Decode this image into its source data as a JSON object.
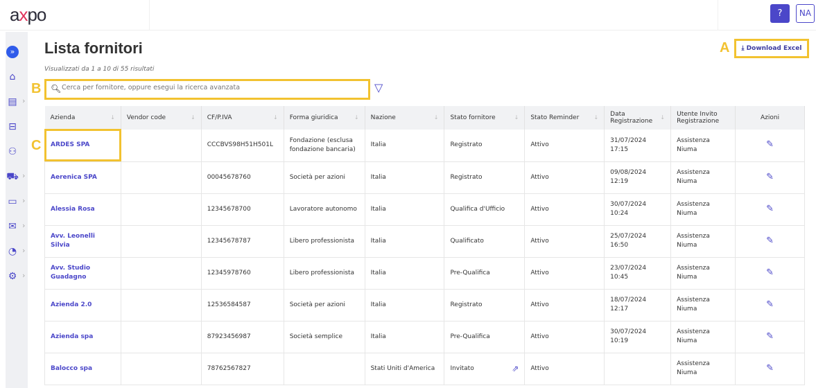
{
  "header": {
    "logo": "axpo",
    "help_label": "?",
    "avatar_initials": "NA"
  },
  "sidebar": {
    "items": [
      {
        "icon": "expand-icon"
      },
      {
        "icon": "home-icon"
      },
      {
        "icon": "id-card-icon"
      },
      {
        "icon": "briefcase-icon"
      },
      {
        "icon": "users-icon"
      },
      {
        "icon": "truck-icon"
      },
      {
        "icon": "folder-icon"
      },
      {
        "icon": "mail-icon"
      },
      {
        "icon": "chart-pie-icon"
      },
      {
        "icon": "gear-icon"
      }
    ]
  },
  "page": {
    "title": "Lista fornitori",
    "subtitle": "Visualizzati da 1 a 10 di 55 risultati",
    "download_label": "Download Excel",
    "search_placeholder": "Cerca per fornitore, oppure esegui la ricerca avanzata"
  },
  "annotations": {
    "a": "A",
    "b": "B",
    "c": "C"
  },
  "accent": "#4b47c9",
  "highlight": "#f2c230",
  "table": {
    "columns": [
      "Azienda",
      "Vendor code",
      "CF/P.IVA",
      "Forma giuridica",
      "Nazione",
      "Stato fornitore",
      "Stato Reminder",
      "Data Registrazione",
      "Utente Invito Registrazione",
      "Azioni"
    ],
    "rows": [
      {
        "azienda": "ARDES SPA",
        "vendor": "",
        "cf": "CCCBVS98H51H501L",
        "forma": "Fondazione (esclusa fondazione bancaria)",
        "nazione": "Italia",
        "stato": "Registrato",
        "reminder": "Attivo",
        "data": "31/07/2024 17:15",
        "utente": "Assistenza Niuma"
      },
      {
        "azienda": "Aerenica SPA",
        "vendor": "",
        "cf": "00045678760",
        "forma": "Società per azioni",
        "nazione": "Italia",
        "stato": "Registrato",
        "reminder": "Attivo",
        "data": "09/08/2024 12:19",
        "utente": "Assistenza Niuma"
      },
      {
        "azienda": "Alessia Rosa",
        "vendor": "",
        "cf": "12345678700",
        "forma": "Lavoratore autonomo",
        "nazione": "Italia",
        "stato": "Qualifica d'Ufficio",
        "reminder": "Attivo",
        "data": "30/07/2024 10:24",
        "utente": "Assistenza Niuma"
      },
      {
        "azienda": "Avv. Leonelli Silvia",
        "vendor": "",
        "cf": "12345678787",
        "forma": "Libero professionista",
        "nazione": "Italia",
        "stato": "Qualificato",
        "reminder": "Attivo",
        "data": "25/07/2024 16:50",
        "utente": "Assistenza Niuma"
      },
      {
        "azienda": "Avv. Studio Guadagno",
        "vendor": "",
        "cf": "12345978760",
        "forma": "Libero professionista",
        "nazione": "Italia",
        "stato": "Pre-Qualifica",
        "reminder": "Attivo",
        "data": "23/07/2024 10:45",
        "utente": "Assistenza Niuma"
      },
      {
        "azienda": "Azienda 2.0",
        "vendor": "",
        "cf": "12536584587",
        "forma": "Società per azioni",
        "nazione": "Italia",
        "stato": "Registrato",
        "reminder": "Attivo",
        "data": "18/07/2024 12:17",
        "utente": "Assistenza Niuma"
      },
      {
        "azienda": "Azienda spa",
        "vendor": "",
        "cf": "87923456987",
        "forma": "Società semplice",
        "nazione": "Italia",
        "stato": "Pre-Qualifica",
        "reminder": "Attivo",
        "data": "30/07/2024 10:19",
        "utente": "Assistenza Niuma"
      },
      {
        "azienda": "Balocco spa",
        "vendor": "",
        "cf": "78762567827",
        "forma": "",
        "nazione": "Stati Uniti d'America",
        "stato": "Invitato",
        "reminder": "Attivo",
        "data": "",
        "utente": "Assistenza Niuma",
        "stato_icon": "external-link-icon"
      }
    ]
  }
}
